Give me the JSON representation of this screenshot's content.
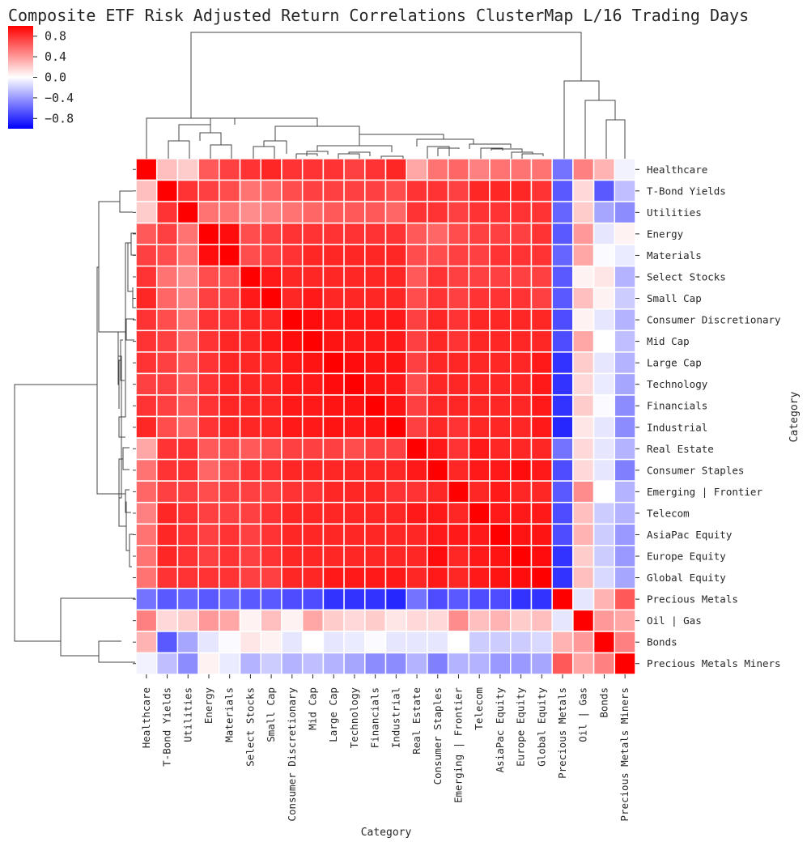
{
  "chart_data": {
    "type": "heatmap",
    "title": "Composite ETF Risk Adjusted Return Correlations ClusterMap L/16 Trading Days",
    "xlabel": "Category",
    "ylabel": "Category",
    "vmin": -1,
    "vmax": 1,
    "colormap": "bwr",
    "colorbar_ticks": [
      0.8,
      0.4,
      0.0,
      -0.4,
      -0.8
    ],
    "colorbar_tick_labels": [
      "0.8",
      "0.4",
      "0.0",
      "−0.4",
      "−0.8"
    ],
    "categories": [
      "Healthcare",
      "T-Bond Yields",
      "Utilities",
      "Energy",
      "Materials",
      "Select Stocks",
      "Small Cap",
      "Consumer Discretionary",
      "Mid Cap",
      "Large Cap",
      "Technology",
      "Financials",
      "Industrial",
      "Real Estate",
      "Consumer Staples",
      "Emerging | Frontier",
      "Telecom",
      "AsiaPac Equity",
      "Europe Equity",
      "Global Equity",
      "Precious Metals",
      "Oil | Gas",
      "Bonds",
      "Precious Metals Miners"
    ],
    "values": [
      [
        1.0,
        0.25,
        0.2,
        0.65,
        0.75,
        0.8,
        0.85,
        0.8,
        0.8,
        0.8,
        0.75,
        0.8,
        0.85,
        0.35,
        0.55,
        0.6,
        0.5,
        0.55,
        0.55,
        0.55,
        -0.55,
        0.5,
        0.3,
        -0.05
      ],
      [
        0.25,
        1.0,
        0.8,
        0.75,
        0.7,
        0.55,
        0.6,
        0.7,
        0.75,
        0.75,
        0.75,
        0.75,
        0.7,
        0.8,
        0.8,
        0.75,
        0.85,
        0.85,
        0.85,
        0.8,
        -0.65,
        0.15,
        -0.65,
        -0.25
      ],
      [
        0.2,
        0.8,
        1.0,
        0.55,
        0.55,
        0.45,
        0.5,
        0.55,
        0.6,
        0.65,
        0.65,
        0.65,
        0.6,
        0.8,
        0.8,
        0.75,
        0.8,
        0.8,
        0.8,
        0.8,
        -0.6,
        0.2,
        -0.35,
        -0.45
      ],
      [
        0.65,
        0.75,
        0.55,
        1.0,
        0.95,
        0.7,
        0.75,
        0.8,
        0.8,
        0.8,
        0.8,
        0.8,
        0.8,
        0.65,
        0.6,
        0.7,
        0.75,
        0.75,
        0.75,
        0.8,
        -0.65,
        0.4,
        -0.1,
        0.05
      ],
      [
        0.75,
        0.7,
        0.55,
        0.95,
        1.0,
        0.7,
        0.75,
        0.8,
        0.85,
        0.85,
        0.85,
        0.85,
        0.85,
        0.7,
        0.7,
        0.75,
        0.75,
        0.8,
        0.8,
        0.8,
        -0.6,
        0.35,
        -0.02,
        -0.08
      ],
      [
        0.8,
        0.55,
        0.45,
        0.7,
        0.7,
        1.0,
        0.9,
        0.85,
        0.85,
        0.85,
        0.85,
        0.85,
        0.85,
        0.65,
        0.8,
        0.75,
        0.75,
        0.75,
        0.75,
        0.75,
        -0.65,
        0.05,
        0.1,
        -0.3
      ],
      [
        0.85,
        0.6,
        0.5,
        0.75,
        0.75,
        0.9,
        1.0,
        0.85,
        0.9,
        0.85,
        0.85,
        0.85,
        0.85,
        0.7,
        0.8,
        0.75,
        0.8,
        0.8,
        0.8,
        0.75,
        -0.65,
        0.25,
        0.05,
        -0.2
      ],
      [
        0.8,
        0.7,
        0.55,
        0.8,
        0.8,
        0.85,
        0.85,
        1.0,
        0.95,
        0.9,
        0.9,
        0.9,
        0.9,
        0.75,
        0.85,
        0.8,
        0.85,
        0.85,
        0.85,
        0.85,
        -0.7,
        0.05,
        -0.1,
        -0.3
      ],
      [
        0.8,
        0.75,
        0.6,
        0.8,
        0.85,
        0.85,
        0.9,
        0.95,
        1.0,
        0.92,
        0.9,
        0.9,
        0.9,
        0.75,
        0.85,
        0.8,
        0.85,
        0.85,
        0.85,
        0.85,
        -0.7,
        0.35,
        0.0,
        -0.25
      ],
      [
        0.8,
        0.75,
        0.65,
        0.8,
        0.85,
        0.85,
        0.85,
        0.9,
        0.92,
        1.0,
        0.95,
        0.92,
        0.92,
        0.75,
        0.85,
        0.85,
        0.85,
        0.85,
        0.85,
        0.9,
        -0.8,
        0.2,
        -0.1,
        -0.3
      ],
      [
        0.75,
        0.75,
        0.65,
        0.8,
        0.85,
        0.85,
        0.85,
        0.9,
        0.9,
        0.95,
        1.0,
        0.92,
        0.9,
        0.7,
        0.85,
        0.85,
        0.85,
        0.85,
        0.85,
        0.9,
        -0.8,
        0.15,
        -0.08,
        -0.35
      ],
      [
        0.8,
        0.75,
        0.65,
        0.8,
        0.85,
        0.85,
        0.85,
        0.9,
        0.9,
        0.92,
        0.92,
        1.0,
        0.92,
        0.75,
        0.85,
        0.85,
        0.85,
        0.85,
        0.85,
        0.9,
        -0.8,
        0.2,
        -0.02,
        -0.45
      ],
      [
        0.85,
        0.7,
        0.6,
        0.8,
        0.85,
        0.85,
        0.85,
        0.9,
        0.9,
        0.92,
        0.9,
        0.92,
        1.0,
        0.75,
        0.85,
        0.8,
        0.85,
        0.85,
        0.85,
        0.9,
        -0.85,
        0.1,
        -0.1,
        -0.45
      ],
      [
        0.35,
        0.8,
        0.8,
        0.65,
        0.7,
        0.65,
        0.7,
        0.75,
        0.75,
        0.75,
        0.7,
        0.75,
        0.75,
        1.0,
        0.9,
        0.8,
        0.9,
        0.85,
        0.85,
        0.85,
        -0.55,
        0.15,
        -0.1,
        -0.3
      ],
      [
        0.55,
        0.8,
        0.8,
        0.6,
        0.7,
        0.8,
        0.8,
        0.85,
        0.85,
        0.85,
        0.85,
        0.85,
        0.85,
        0.9,
        1.0,
        0.85,
        0.9,
        0.9,
        0.95,
        0.9,
        -0.7,
        0.15,
        -0.1,
        -0.5
      ],
      [
        0.6,
        0.75,
        0.75,
        0.7,
        0.75,
        0.75,
        0.75,
        0.8,
        0.8,
        0.85,
        0.85,
        0.85,
        0.8,
        0.8,
        0.85,
        1.0,
        0.85,
        0.9,
        0.85,
        0.85,
        -0.65,
        0.45,
        0.0,
        -0.3
      ],
      [
        0.5,
        0.85,
        0.8,
        0.75,
        0.75,
        0.75,
        0.8,
        0.85,
        0.85,
        0.85,
        0.85,
        0.85,
        0.85,
        0.9,
        0.9,
        0.85,
        1.0,
        0.9,
        0.9,
        0.9,
        -0.7,
        0.25,
        -0.2,
        -0.3
      ],
      [
        0.55,
        0.85,
        0.8,
        0.75,
        0.8,
        0.75,
        0.8,
        0.85,
        0.85,
        0.85,
        0.85,
        0.85,
        0.85,
        0.85,
        0.9,
        0.9,
        0.9,
        1.0,
        0.92,
        0.92,
        -0.7,
        0.3,
        -0.2,
        -0.4
      ],
      [
        0.55,
        0.85,
        0.8,
        0.75,
        0.8,
        0.75,
        0.8,
        0.85,
        0.85,
        0.85,
        0.85,
        0.85,
        0.85,
        0.85,
        0.95,
        0.85,
        0.9,
        0.92,
        1.0,
        0.95,
        -0.8,
        0.2,
        -0.2,
        -0.4
      ],
      [
        0.55,
        0.8,
        0.8,
        0.8,
        0.8,
        0.75,
        0.75,
        0.85,
        0.85,
        0.9,
        0.9,
        0.9,
        0.9,
        0.85,
        0.9,
        0.85,
        0.9,
        0.92,
        0.95,
        1.0,
        -0.8,
        0.25,
        -0.15,
        -0.35
      ],
      [
        -0.55,
        -0.65,
        -0.6,
        -0.65,
        -0.6,
        -0.65,
        -0.65,
        -0.7,
        -0.7,
        -0.8,
        -0.8,
        -0.8,
        -0.85,
        -0.55,
        -0.7,
        -0.65,
        -0.7,
        -0.7,
        -0.8,
        -0.8,
        1.0,
        -0.1,
        0.3,
        0.65
      ],
      [
        0.5,
        0.15,
        0.2,
        0.4,
        0.35,
        0.05,
        0.25,
        0.05,
        0.35,
        0.2,
        0.15,
        0.2,
        0.1,
        0.15,
        0.15,
        0.45,
        0.25,
        0.3,
        0.2,
        0.25,
        -0.1,
        1.0,
        0.4,
        0.35
      ],
      [
        0.3,
        -0.65,
        -0.35,
        -0.1,
        -0.02,
        0.1,
        0.05,
        -0.1,
        0.0,
        -0.1,
        -0.08,
        -0.02,
        -0.1,
        -0.1,
        -0.1,
        0.0,
        -0.2,
        -0.2,
        -0.2,
        -0.15,
        0.3,
        0.4,
        1.0,
        0.5
      ],
      [
        -0.05,
        -0.25,
        -0.45,
        0.05,
        -0.08,
        -0.3,
        -0.2,
        -0.3,
        -0.25,
        -0.3,
        -0.35,
        -0.45,
        -0.45,
        -0.3,
        -0.5,
        -0.3,
        -0.3,
        -0.4,
        -0.4,
        -0.35,
        0.65,
        0.35,
        0.5,
        1.0
      ]
    ]
  }
}
